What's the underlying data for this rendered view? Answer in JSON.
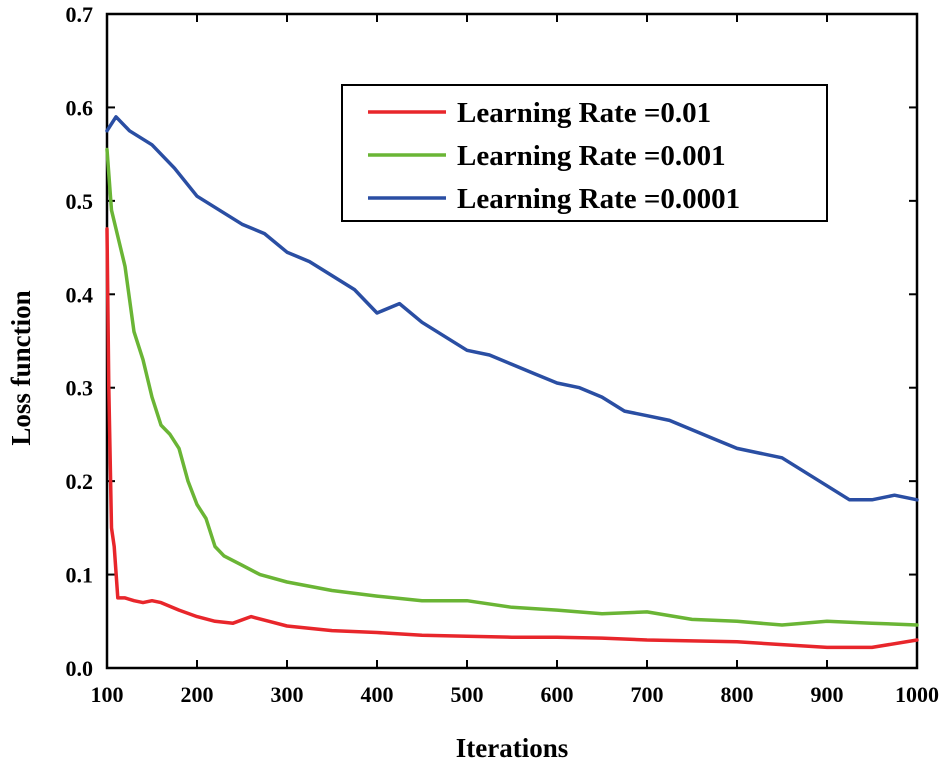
{
  "chart_data": {
    "type": "line",
    "title": "",
    "xlabel": "Iterations",
    "ylabel": "Loss function",
    "xlim": [
      100,
      1000
    ],
    "ylim": [
      0.0,
      0.7
    ],
    "xticks": [
      100,
      200,
      300,
      400,
      500,
      600,
      700,
      800,
      900,
      1000
    ],
    "yticks": [
      0.0,
      0.1,
      0.2,
      0.3,
      0.4,
      0.5,
      0.6,
      0.7
    ],
    "ytick_labels": [
      "0.0",
      "0.1",
      "0.2",
      "0.3",
      "0.4",
      "0.5",
      "0.6",
      "0.7"
    ],
    "grid": false,
    "legend_position": "top-right",
    "series": [
      {
        "name": "Learning Rate =0.01",
        "color": "#e8262b",
        "x": [
          100,
          102,
          105,
          108,
          112,
          120,
          130,
          140,
          150,
          160,
          180,
          200,
          220,
          240,
          260,
          280,
          300,
          350,
          400,
          450,
          500,
          550,
          600,
          650,
          700,
          750,
          800,
          850,
          900,
          950,
          1000
        ],
        "y": [
          0.47,
          0.3,
          0.15,
          0.13,
          0.075,
          0.075,
          0.072,
          0.07,
          0.072,
          0.07,
          0.062,
          0.055,
          0.05,
          0.048,
          0.055,
          0.05,
          0.045,
          0.04,
          0.038,
          0.035,
          0.034,
          0.033,
          0.033,
          0.032,
          0.03,
          0.029,
          0.028,
          0.025,
          0.022,
          0.022,
          0.03
        ]
      },
      {
        "name": "Learning Rate =0.001",
        "color": "#6ab535",
        "x": [
          100,
          105,
          110,
          120,
          130,
          140,
          150,
          160,
          170,
          180,
          190,
          200,
          210,
          220,
          230,
          250,
          270,
          300,
          350,
          400,
          450,
          500,
          550,
          600,
          650,
          700,
          750,
          800,
          850,
          900,
          950,
          1000
        ],
        "y": [
          0.555,
          0.49,
          0.47,
          0.43,
          0.36,
          0.33,
          0.29,
          0.26,
          0.25,
          0.235,
          0.2,
          0.175,
          0.16,
          0.13,
          0.12,
          0.11,
          0.1,
          0.092,
          0.083,
          0.077,
          0.072,
          0.072,
          0.065,
          0.062,
          0.058,
          0.06,
          0.052,
          0.05,
          0.046,
          0.05,
          0.048,
          0.046
        ]
      },
      {
        "name": "Learning Rate =0.0001",
        "color": "#2a4ea3",
        "x": [
          100,
          110,
          125,
          150,
          175,
          200,
          225,
          250,
          275,
          300,
          325,
          350,
          375,
          400,
          425,
          450,
          475,
          500,
          525,
          550,
          575,
          600,
          625,
          650,
          675,
          700,
          725,
          750,
          775,
          800,
          825,
          850,
          875,
          900,
          925,
          950,
          975,
          1000
        ],
        "y": [
          0.575,
          0.59,
          0.575,
          0.56,
          0.535,
          0.505,
          0.49,
          0.475,
          0.465,
          0.445,
          0.435,
          0.42,
          0.405,
          0.38,
          0.39,
          0.37,
          0.355,
          0.34,
          0.335,
          0.325,
          0.315,
          0.305,
          0.3,
          0.29,
          0.275,
          0.27,
          0.265,
          0.255,
          0.245,
          0.235,
          0.23,
          0.225,
          0.21,
          0.195,
          0.18,
          0.18,
          0.185,
          0.18
        ]
      }
    ]
  }
}
